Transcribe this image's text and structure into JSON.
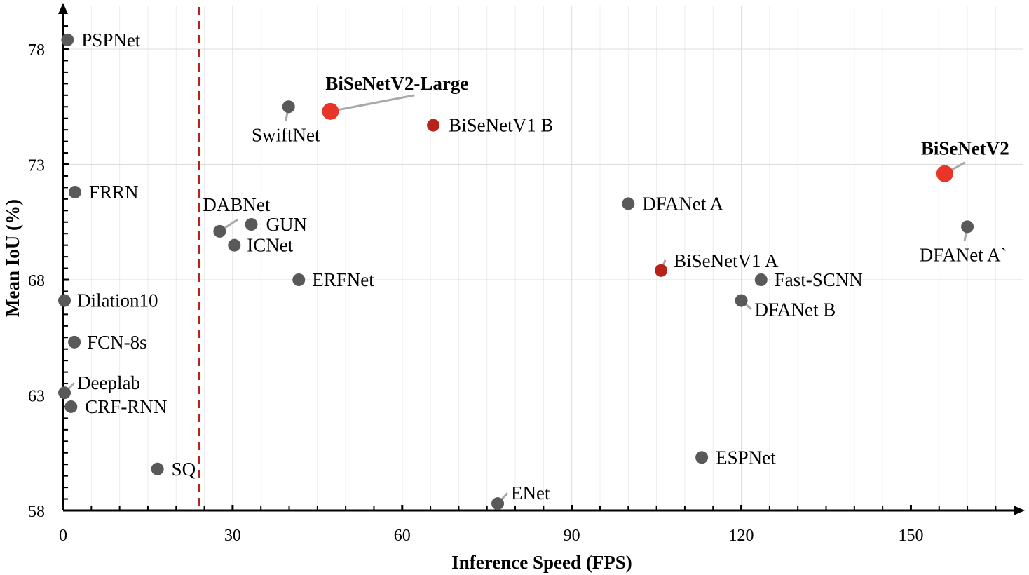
{
  "chart_data": {
    "type": "scatter",
    "title": "",
    "xlabel": "Inference Speed (FPS)",
    "ylabel": "Mean IoU (%)",
    "xlim": [
      0,
      170
    ],
    "ylim": [
      58,
      79.5
    ],
    "xticks": [
      0,
      30,
      60,
      90,
      120,
      150
    ],
    "yticks": [
      58,
      63,
      68,
      73,
      78
    ],
    "grid": true,
    "reference_line": {
      "x": 24,
      "style": "dashed",
      "color": "#b5231a"
    },
    "colors": {
      "baseline": "#595959",
      "bisenetv1": "#b5231a",
      "bisenetv2": "#e8352a"
    },
    "points": [
      {
        "name": "PSPNet",
        "x": 0.78,
        "y": 78.4,
        "group": "baseline"
      },
      {
        "name": "SwiftNet",
        "x": 39.9,
        "y": 75.5,
        "group": "baseline"
      },
      {
        "name": "BiSeNetV2-Large",
        "x": 47.3,
        "y": 75.3,
        "group": "bisenetv2",
        "bold": true
      },
      {
        "name": "BiSeNetV1 B",
        "x": 65.5,
        "y": 74.7,
        "group": "bisenetv1"
      },
      {
        "name": "BiSeNetV2",
        "x": 156,
        "y": 72.6,
        "group": "bisenetv2",
        "bold": true
      },
      {
        "name": "FRRN",
        "x": 2.1,
        "y": 71.8,
        "group": "baseline"
      },
      {
        "name": "DABNet",
        "x": 27.7,
        "y": 70.1,
        "group": "baseline"
      },
      {
        "name": "GUN",
        "x": 33.3,
        "y": 70.4,
        "group": "baseline"
      },
      {
        "name": "ICNet",
        "x": 30.3,
        "y": 69.5,
        "group": "baseline"
      },
      {
        "name": "DFANet A",
        "x": 100,
        "y": 71.3,
        "group": "baseline"
      },
      {
        "name": "DFANet A`",
        "x": 160,
        "y": 70.3,
        "group": "baseline"
      },
      {
        "name": "BiSeNetV1 A",
        "x": 105.8,
        "y": 68.4,
        "group": "bisenetv1"
      },
      {
        "name": "ERFNet",
        "x": 41.7,
        "y": 68.0,
        "group": "baseline"
      },
      {
        "name": "Fast-SCNN",
        "x": 123.5,
        "y": 68.0,
        "group": "baseline"
      },
      {
        "name": "DFANet B",
        "x": 120,
        "y": 67.1,
        "group": "baseline"
      },
      {
        "name": "Dilation10",
        "x": 0.25,
        "y": 67.1,
        "group": "baseline"
      },
      {
        "name": "FCN-8s",
        "x": 2,
        "y": 65.3,
        "group": "baseline"
      },
      {
        "name": "Deeplab",
        "x": 0.25,
        "y": 63.1,
        "group": "baseline"
      },
      {
        "name": "CRF-RNN",
        "x": 1.4,
        "y": 62.5,
        "group": "baseline"
      },
      {
        "name": "SQ",
        "x": 16.7,
        "y": 59.8,
        "group": "baseline"
      },
      {
        "name": "ESPNet",
        "x": 113,
        "y": 60.3,
        "group": "baseline"
      },
      {
        "name": "ENet",
        "x": 76.9,
        "y": 58.3,
        "group": "baseline"
      }
    ]
  }
}
